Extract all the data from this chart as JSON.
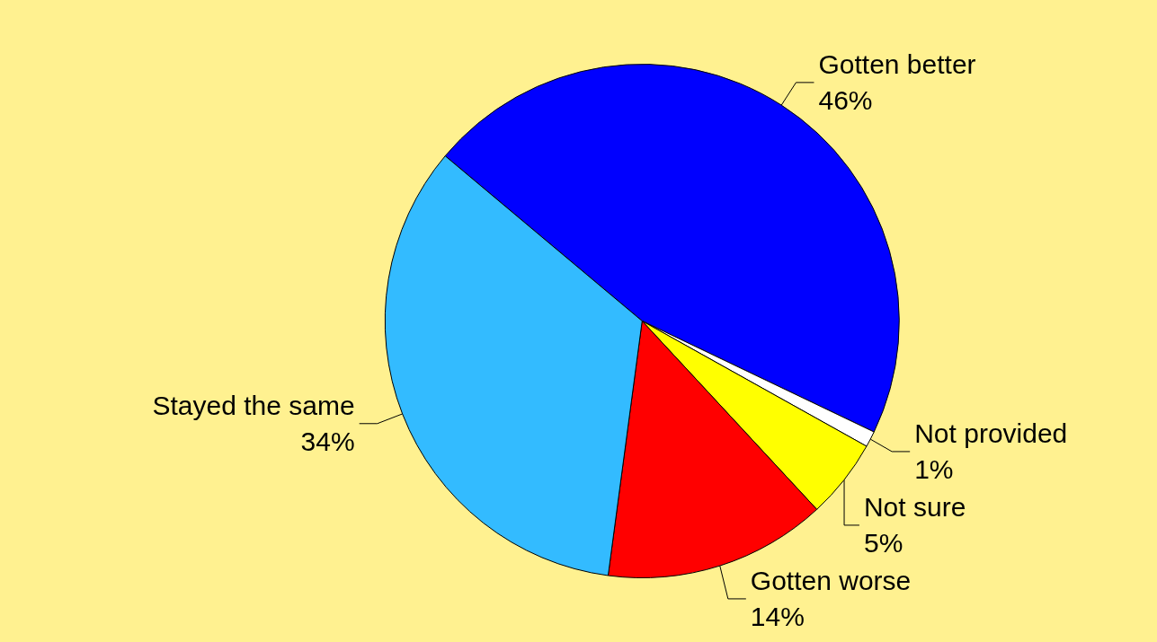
{
  "chart_data": {
    "type": "pie",
    "categories": [
      "Gotten better",
      "Not provided",
      "Not sure",
      "Gotten worse",
      "Stayed the same"
    ],
    "values": [
      46,
      1,
      5,
      14,
      34
    ],
    "colors": [
      "#0000ff",
      "#ffffff",
      "#ffff00",
      "#ff0000",
      "#33bbff"
    ],
    "value_labels": [
      "46%",
      "1%",
      "5%",
      "14%",
      "34%"
    ],
    "legend": false
  }
}
